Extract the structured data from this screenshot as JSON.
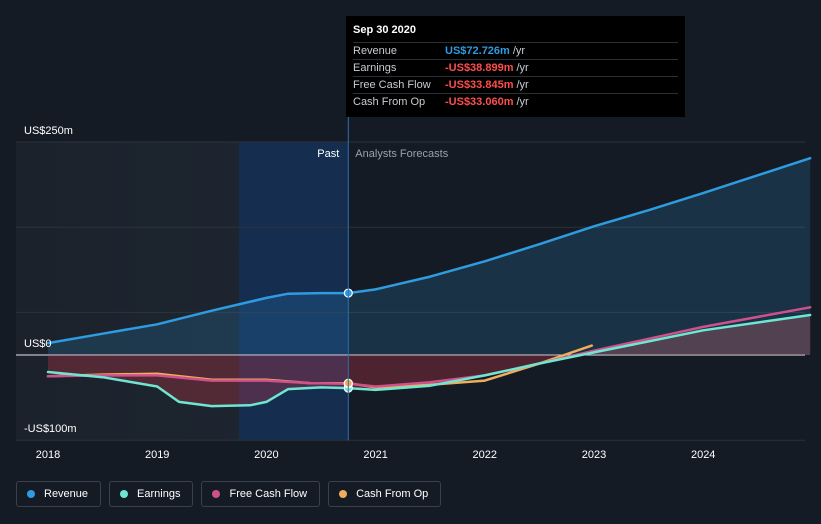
{
  "tooltip": {
    "date": "Sep 30 2020",
    "rows": [
      {
        "label": "Revenue",
        "value": "US$72.726m",
        "unit": "/yr",
        "color": "#2f9be0"
      },
      {
        "label": "Earnings",
        "value": "-US$38.899m",
        "unit": "/yr",
        "color": "#ff4d4d"
      },
      {
        "label": "Free Cash Flow",
        "value": "-US$33.845m",
        "unit": "/yr",
        "color": "#ff4d4d"
      },
      {
        "label": "Cash From Op",
        "value": "-US$33.060m",
        "unit": "/yr",
        "color": "#ff4d4d"
      }
    ]
  },
  "regions": {
    "past": "Past",
    "forecast": "Analysts Forecasts"
  },
  "legend": [
    {
      "name": "Revenue",
      "color": "#2f9be0"
    },
    {
      "name": "Earnings",
      "color": "#6ee6d2"
    },
    {
      "name": "Free Cash Flow",
      "color": "#d0508c"
    },
    {
      "name": "Cash From Op",
      "color": "#f0ad5c"
    }
  ],
  "chart_data": {
    "type": "line",
    "y_ticks": [
      {
        "value": 250,
        "label": "US$250m"
      },
      {
        "value": 0,
        "label": "US$0"
      },
      {
        "value": -100,
        "label": "-US$100m"
      }
    ],
    "ylim": [
      -100,
      250
    ],
    "x_ticks": [
      2018,
      2019,
      2020,
      2021,
      2022,
      2023,
      2024
    ],
    "xlim": [
      2018,
      2024.98
    ],
    "past_end": 2020.75,
    "highlight_start": 2019.75,
    "series": [
      {
        "name": "Revenue",
        "color": "#2f9be0",
        "points": [
          [
            2018,
            14
          ],
          [
            2018.5,
            25
          ],
          [
            2019,
            36
          ],
          [
            2019.5,
            52
          ],
          [
            2020,
            67
          ],
          [
            2020.2,
            72
          ],
          [
            2020.5,
            72.7
          ],
          [
            2020.75,
            72.7
          ],
          [
            2021,
            77
          ],
          [
            2021.5,
            92
          ],
          [
            2022,
            110
          ],
          [
            2022.5,
            130
          ],
          [
            2023,
            151
          ],
          [
            2023.5,
            170
          ],
          [
            2024,
            190
          ],
          [
            2024.98,
            231
          ]
        ]
      },
      {
        "name": "Earnings",
        "color": "#6ee6d2",
        "points": [
          [
            2018,
            -20
          ],
          [
            2018.5,
            -26
          ],
          [
            2019,
            -37
          ],
          [
            2019.2,
            -55
          ],
          [
            2019.5,
            -60
          ],
          [
            2019.85,
            -59
          ],
          [
            2020,
            -55
          ],
          [
            2020.2,
            -40
          ],
          [
            2020.5,
            -38
          ],
          [
            2020.75,
            -38.9
          ],
          [
            2021,
            -41
          ],
          [
            2021.5,
            -36
          ],
          [
            2022,
            -24
          ],
          [
            2022.5,
            -10
          ],
          [
            2023,
            3
          ],
          [
            2023.5,
            16
          ],
          [
            2024,
            29
          ],
          [
            2024.98,
            47
          ]
        ]
      },
      {
        "name": "Free Cash Flow",
        "color": "#d0508c",
        "points": [
          [
            2018,
            -25
          ],
          [
            2018.5,
            -24
          ],
          [
            2019,
            -24
          ],
          [
            2019.5,
            -30
          ],
          [
            2020,
            -30
          ],
          [
            2020.4,
            -33
          ],
          [
            2020.75,
            -33.8
          ],
          [
            2021,
            -37
          ],
          [
            2021.5,
            -32
          ],
          [
            2022,
            -24
          ],
          [
            2022.5,
            -10
          ],
          [
            2023,
            5
          ],
          [
            2023.5,
            19
          ],
          [
            2024,
            33
          ],
          [
            2024.98,
            56
          ]
        ]
      },
      {
        "name": "Cash From Op",
        "color": "#f0ad5c",
        "points": [
          [
            2018,
            -25
          ],
          [
            2018.5,
            -23
          ],
          [
            2019,
            -22
          ],
          [
            2019.5,
            -29
          ],
          [
            2020,
            -29
          ],
          [
            2020.4,
            -33
          ],
          [
            2020.75,
            -33.1
          ],
          [
            2021,
            -38
          ],
          [
            2021.5,
            -35
          ],
          [
            2022,
            -30
          ],
          [
            2022.5,
            -10
          ],
          [
            2022.98,
            11
          ]
        ]
      }
    ]
  }
}
